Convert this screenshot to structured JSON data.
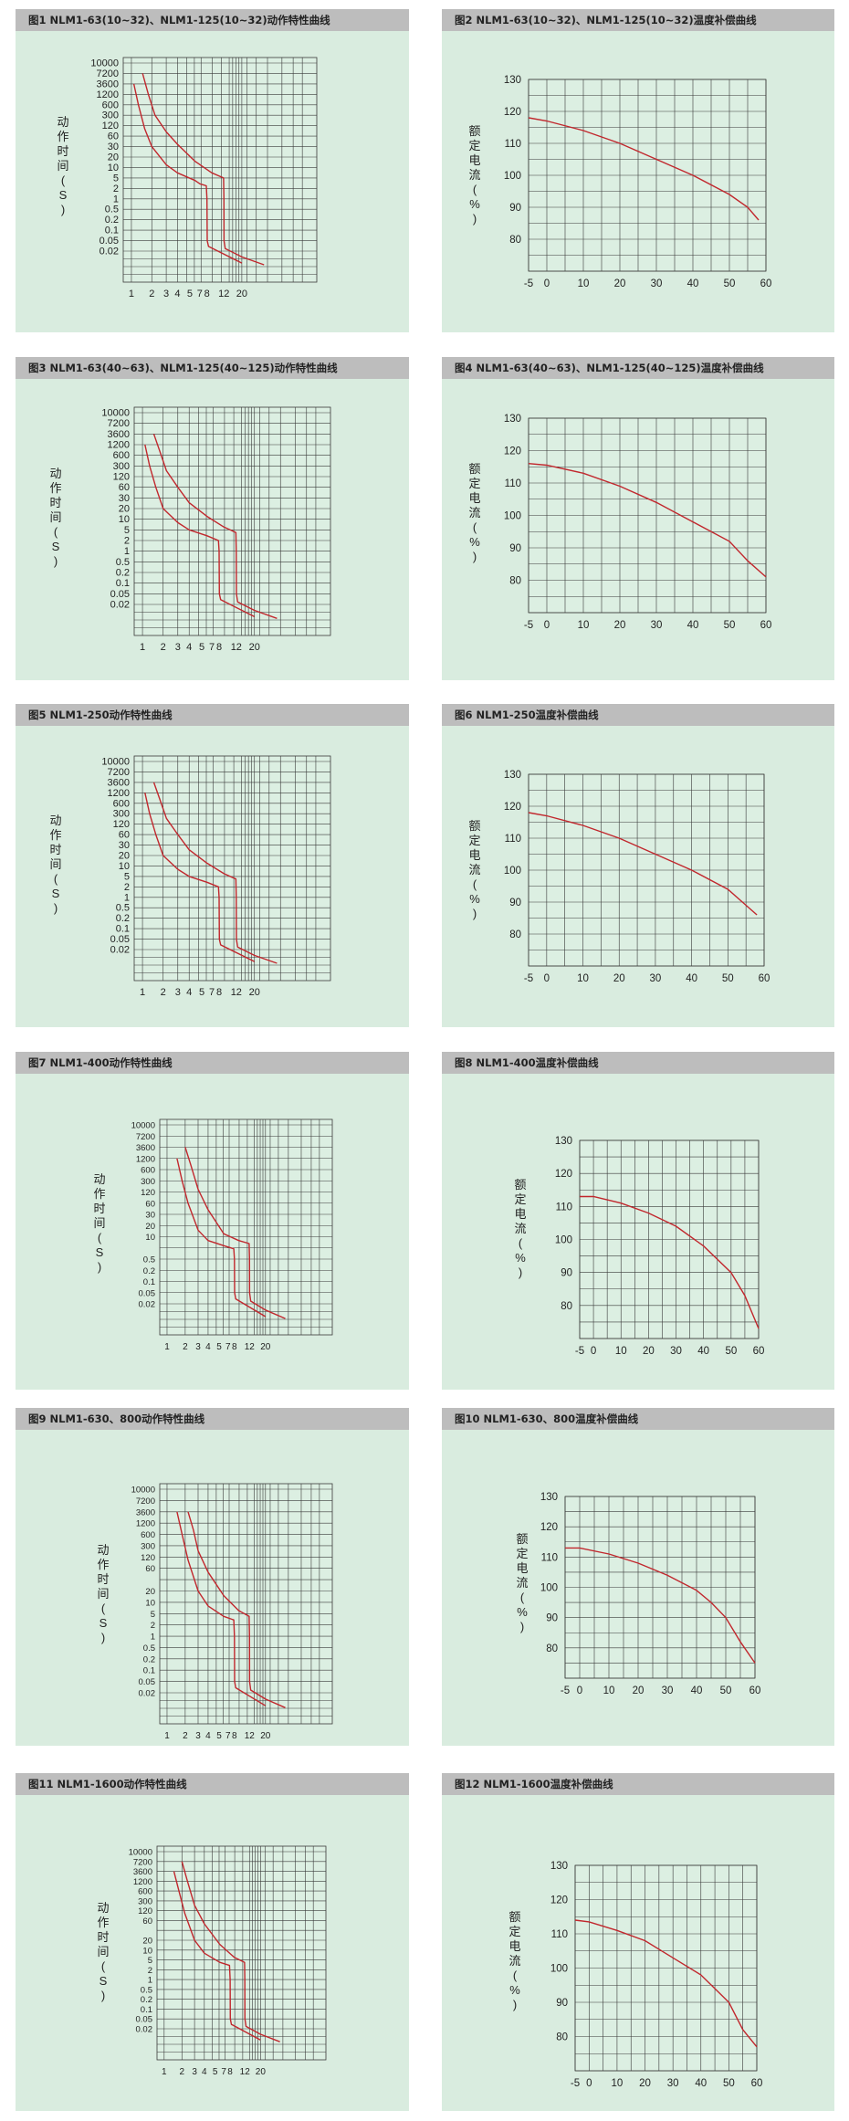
{
  "chart_data": [
    {
      "id": 1,
      "type": "line",
      "title": "图1 NLM1-63(10~32)、NLM1-125(10~32)动作特性曲线",
      "ylabel": "动作时间(S)",
      "yticks": [
        "10000",
        "7200",
        "3600",
        "1200",
        "600",
        "300",
        "120",
        "60",
        "30",
        "20",
        "10",
        "5",
        "2",
        "1",
        "0.5",
        "0.2",
        "0.1",
        "0.05",
        "0.02"
      ],
      "xticks": [
        "1",
        "2",
        "3",
        "4",
        "5",
        "7",
        "8",
        "12",
        "20"
      ],
      "series": [
        {
          "points": [
            [
              1.1,
              3600
            ],
            [
              1.3,
              600
            ],
            [
              1.6,
              100
            ],
            [
              2,
              30
            ],
            [
              3,
              12
            ],
            [
              4,
              7
            ],
            [
              6,
              4
            ],
            [
              7,
              3
            ],
            [
              7.9,
              2.5
            ],
            [
              8,
              1
            ],
            [
              8.05,
              0.05
            ],
            [
              8.3,
              0.03
            ],
            [
              20,
              0.007
            ]
          ]
        },
        {
          "points": [
            [
              1.5,
              7200
            ],
            [
              1.8,
              1200
            ],
            [
              2.2,
              300
            ],
            [
              3,
              80
            ],
            [
              4,
              35
            ],
            [
              6,
              15
            ],
            [
              9,
              7
            ],
            [
              11.9,
              5
            ],
            [
              12,
              1
            ],
            [
              12.05,
              0.05
            ],
            [
              12.5,
              0.025
            ],
            [
              20,
              0.012
            ],
            [
              30,
              0.006
            ]
          ]
        }
      ]
    },
    {
      "id": 2,
      "type": "line",
      "title": "图2 NLM1-63(10~32)、NLM1-125(10~32)温度补偿曲线",
      "ylabel": "额定电流(%)",
      "xlim": [
        -5,
        60
      ],
      "ylim": [
        70,
        130
      ],
      "xticks": [
        "-5",
        "0",
        "10",
        "20",
        "30",
        "40",
        "50",
        "60"
      ],
      "yticks": [
        "130",
        "120",
        "110",
        "100",
        "90",
        "80"
      ],
      "series": [
        {
          "x": [
            -5,
            0,
            10,
            20,
            30,
            40,
            50,
            55,
            58
          ],
          "y": [
            118,
            117,
            114,
            110,
            105,
            100,
            94,
            90,
            86
          ]
        }
      ]
    },
    {
      "id": 3,
      "type": "line",
      "title": "图3 NLM1-63(40~63)、NLM1-125(40~125)动作特性曲线",
      "ylabel": "动作时间(S)",
      "yticks": [
        "10000",
        "7200",
        "3600",
        "1200",
        "600",
        "300",
        "120",
        "60",
        "30",
        "20",
        "10",
        "5",
        "2",
        "1",
        "0.5",
        "0.2",
        "0.1",
        "0.05",
        "0.02"
      ],
      "xticks": [
        "1",
        "2",
        "3",
        "4",
        "5",
        "7",
        "8",
        "12",
        "20"
      ],
      "series": [
        {
          "points": [
            [
              1.1,
              1200
            ],
            [
              1.3,
              300
            ],
            [
              1.6,
              60
            ],
            [
              2,
              20
            ],
            [
              3,
              8
            ],
            [
              4,
              5
            ],
            [
              6,
              3
            ],
            [
              7.9,
              2
            ],
            [
              8,
              1
            ],
            [
              8.05,
              0.05
            ],
            [
              8.3,
              0.03
            ],
            [
              20,
              0.007
            ]
          ]
        },
        {
          "points": [
            [
              1.5,
              3600
            ],
            [
              1.8,
              800
            ],
            [
              2.2,
              200
            ],
            [
              3,
              60
            ],
            [
              4,
              25
            ],
            [
              6,
              12
            ],
            [
              9,
              6
            ],
            [
              11.9,
              4
            ],
            [
              12,
              1
            ],
            [
              12.05,
              0.05
            ],
            [
              12.5,
              0.025
            ],
            [
              20,
              0.012
            ],
            [
              30,
              0.006
            ]
          ]
        }
      ]
    },
    {
      "id": 4,
      "type": "line",
      "title": "图4 NLM1-63(40~63)、NLM1-125(40~125)温度补偿曲线",
      "ylabel": "额定电流(%)",
      "xlim": [
        -5,
        60
      ],
      "ylim": [
        70,
        130
      ],
      "xticks": [
        "-5",
        "0",
        "10",
        "20",
        "30",
        "40",
        "50",
        "60"
      ],
      "yticks": [
        "130",
        "120",
        "110",
        "100",
        "90",
        "80"
      ],
      "series": [
        {
          "x": [
            -5,
            0,
            10,
            20,
            30,
            40,
            50,
            55,
            60
          ],
          "y": [
            116,
            115.5,
            113,
            109,
            104,
            98,
            92,
            86,
            81
          ]
        }
      ]
    },
    {
      "id": 5,
      "type": "line",
      "title": "图5 NLM1-250动作特性曲线",
      "ylabel": "动作时间(S)",
      "yticks": [
        "10000",
        "7200",
        "3600",
        "1200",
        "600",
        "300",
        "120",
        "60",
        "30",
        "20",
        "10",
        "5",
        "2",
        "1",
        "0.5",
        "0.2",
        "0.1",
        "0.05",
        "0.02"
      ],
      "xticks": [
        "1",
        "2",
        "3",
        "4",
        "5",
        "7",
        "8",
        "12",
        "20"
      ],
      "series": [
        {
          "points": [
            [
              1.1,
              1200
            ],
            [
              1.3,
              300
            ],
            [
              1.6,
              60
            ],
            [
              2,
              20
            ],
            [
              3,
              8
            ],
            [
              4,
              5
            ],
            [
              6,
              3
            ],
            [
              7.9,
              2
            ],
            [
              8,
              1
            ],
            [
              8.05,
              0.05
            ],
            [
              8.3,
              0.03
            ],
            [
              20,
              0.007
            ]
          ]
        },
        {
          "points": [
            [
              1.5,
              3600
            ],
            [
              1.8,
              800
            ],
            [
              2.2,
              200
            ],
            [
              3,
              60
            ],
            [
              4,
              25
            ],
            [
              6,
              12
            ],
            [
              9,
              6
            ],
            [
              11.9,
              4
            ],
            [
              12,
              1
            ],
            [
              12.05,
              0.05
            ],
            [
              12.5,
              0.025
            ],
            [
              20,
              0.012
            ],
            [
              30,
              0.006
            ]
          ]
        }
      ]
    },
    {
      "id": 6,
      "type": "line",
      "title": "图6 NLM1-250温度补偿曲线",
      "ylabel": "额定电流(%)",
      "xlim": [
        -5,
        60
      ],
      "ylim": [
        70,
        130
      ],
      "xticks": [
        "-5",
        "0",
        "10",
        "20",
        "30",
        "40",
        "50",
        "60"
      ],
      "yticks": [
        "130",
        "120",
        "110",
        "100",
        "90",
        "80"
      ],
      "series": [
        {
          "x": [
            -5,
            0,
            10,
            20,
            30,
            40,
            50,
            55,
            58
          ],
          "y": [
            118,
            117,
            114,
            110,
            105,
            100,
            94,
            89,
            86
          ]
        }
      ]
    },
    {
      "id": 7,
      "type": "line",
      "title": "图7 NLM1-400动作特性曲线",
      "ylabel": "动作时间(S)",
      "yticks": [
        "10000",
        "7200",
        "3600",
        "1200",
        "600",
        "300",
        "120",
        "60",
        "30",
        "20",
        "10",
        "",
        "0.5",
        "0.2",
        "0.1",
        "0.05",
        "0.02"
      ],
      "xticks": [
        "1",
        "2",
        "3",
        "4",
        "5",
        "7",
        "8",
        "12",
        "20"
      ],
      "series": [
        {
          "points": [
            [
              1.5,
              1200
            ],
            [
              1.8,
              300
            ],
            [
              2.2,
              60
            ],
            [
              3,
              15
            ],
            [
              4,
              6
            ],
            [
              6,
              3
            ],
            [
              7.9,
              2
            ],
            [
              8,
              0.5
            ],
            [
              8.05,
              0.05
            ],
            [
              8.3,
              0.03
            ],
            [
              20,
              0.007
            ]
          ]
        },
        {
          "points": [
            [
              2,
              3600
            ],
            [
              2.4,
              800
            ],
            [
              3,
              150
            ],
            [
              4,
              40
            ],
            [
              6,
              12
            ],
            [
              9,
              6
            ],
            [
              11.9,
              4
            ],
            [
              12,
              0.5
            ],
            [
              12.05,
              0.05
            ],
            [
              12.5,
              0.025
            ],
            [
              20,
              0.012
            ],
            [
              30,
              0.006
            ]
          ]
        }
      ]
    },
    {
      "id": 8,
      "type": "line",
      "title": "图8 NLM1-400温度补偿曲线",
      "ylabel": "额定电流(%)",
      "xlim": [
        -5,
        60
      ],
      "ylim": [
        70,
        130
      ],
      "xticks": [
        "-5",
        "0",
        "10",
        "20",
        "30",
        "40",
        "50",
        "60"
      ],
      "yticks": [
        "130",
        "120",
        "110",
        "100",
        "90",
        "80"
      ],
      "series": [
        {
          "x": [
            -5,
            0,
            10,
            20,
            30,
            40,
            45,
            50,
            55,
            60
          ],
          "y": [
            113,
            113,
            111,
            108,
            104,
            98,
            94,
            90,
            83,
            73
          ]
        }
      ]
    },
    {
      "id": 9,
      "type": "line",
      "title": "图9 NLM1-630、800动作特性曲线",
      "ylabel": "动作时间(S)",
      "yticks": [
        "10000",
        "7200",
        "3600",
        "1200",
        "600",
        "300",
        "120",
        "60",
        "",
        "20",
        "10",
        "5",
        "2",
        "1",
        "0.5",
        "0.2",
        "0.1",
        "0.05",
        "0.02"
      ],
      "xticks": [
        "1",
        "2",
        "3",
        "4",
        "5",
        "7",
        "8",
        "12",
        "20"
      ],
      "series": [
        {
          "points": [
            [
              1.5,
              3600
            ],
            [
              1.8,
              600
            ],
            [
              2.2,
              100
            ],
            [
              3,
              20
            ],
            [
              4,
              8
            ],
            [
              6,
              4
            ],
            [
              7.9,
              3
            ],
            [
              8,
              1
            ],
            [
              8.05,
              0.05
            ],
            [
              8.3,
              0.03
            ],
            [
              20,
              0.007
            ]
          ]
        },
        {
          "points": [
            [
              2.2,
              3600
            ],
            [
              2.6,
              800
            ],
            [
              3,
              200
            ],
            [
              4,
              50
            ],
            [
              6,
              15
            ],
            [
              9,
              6
            ],
            [
              11.9,
              4
            ],
            [
              12,
              1
            ],
            [
              12.05,
              0.05
            ],
            [
              12.5,
              0.025
            ],
            [
              20,
              0.012
            ],
            [
              30,
              0.006
            ]
          ]
        }
      ]
    },
    {
      "id": 10,
      "type": "line",
      "title": "图10 NLM1-630、800温度补偿曲线",
      "ylabel": "额定电流(%)",
      "xlim": [
        -5,
        60
      ],
      "ylim": [
        70,
        130
      ],
      "xticks": [
        "-5",
        "0",
        "10",
        "20",
        "30",
        "40",
        "50",
        "60"
      ],
      "yticks": [
        "130",
        "120",
        "110",
        "100",
        "90",
        "80"
      ],
      "series": [
        {
          "x": [
            -5,
            0,
            10,
            20,
            30,
            40,
            45,
            50,
            55,
            60
          ],
          "y": [
            113,
            113,
            111,
            108,
            104,
            99,
            95,
            90,
            82,
            75
          ]
        }
      ]
    },
    {
      "id": 11,
      "type": "line",
      "title": "图11 NLM1-1600动作特性曲线",
      "ylabel": "动作时间(S)",
      "yticks": [
        "10000",
        "7200",
        "3600",
        "1200",
        "600",
        "300",
        "120",
        "60",
        "",
        "20",
        "10",
        "5",
        "2",
        "1",
        "0.5",
        "0.2",
        "0.1",
        "0.05",
        "0.02"
      ],
      "xticks": [
        "1",
        "2",
        "3",
        "4",
        "5",
        "7",
        "8",
        "12",
        "20"
      ],
      "series": [
        {
          "points": [
            [
              1.5,
              3600
            ],
            [
              1.8,
              600
            ],
            [
              2.2,
              100
            ],
            [
              3,
              20
            ],
            [
              4,
              8
            ],
            [
              6,
              4
            ],
            [
              7.9,
              3
            ],
            [
              8,
              1
            ],
            [
              8.05,
              0.05
            ],
            [
              8.3,
              0.03
            ],
            [
              20,
              0.007
            ]
          ]
        },
        {
          "points": [
            [
              2,
              7200
            ],
            [
              2.4,
              1200
            ],
            [
              3,
              200
            ],
            [
              4,
              50
            ],
            [
              6,
              15
            ],
            [
              9,
              6
            ],
            [
              11.9,
              4
            ],
            [
              12,
              1
            ],
            [
              12.05,
              0.05
            ],
            [
              12.5,
              0.025
            ],
            [
              20,
              0.012
            ],
            [
              30,
              0.006
            ]
          ]
        }
      ]
    },
    {
      "id": 12,
      "type": "line",
      "title": "图12 NLM1-1600温度补偿曲线",
      "ylabel": "额定电流(%)",
      "xlim": [
        -5,
        60
      ],
      "ylim": [
        70,
        130
      ],
      "xticks": [
        "-5",
        "0",
        "10",
        "20",
        "30",
        "40",
        "50",
        "60"
      ],
      "yticks": [
        "130",
        "120",
        "110",
        "100",
        "90",
        "80"
      ],
      "series": [
        {
          "x": [
            -5,
            0,
            10,
            20,
            30,
            40,
            45,
            50,
            55,
            60
          ],
          "y": [
            114,
            113.5,
            111,
            108,
            103,
            98,
            94,
            90,
            82,
            77
          ]
        }
      ]
    }
  ],
  "colors": {
    "curve": "#c1272d",
    "grid": "#3a3a3a",
    "panel": "#d9ecdf",
    "header": "#bdbdbd"
  }
}
